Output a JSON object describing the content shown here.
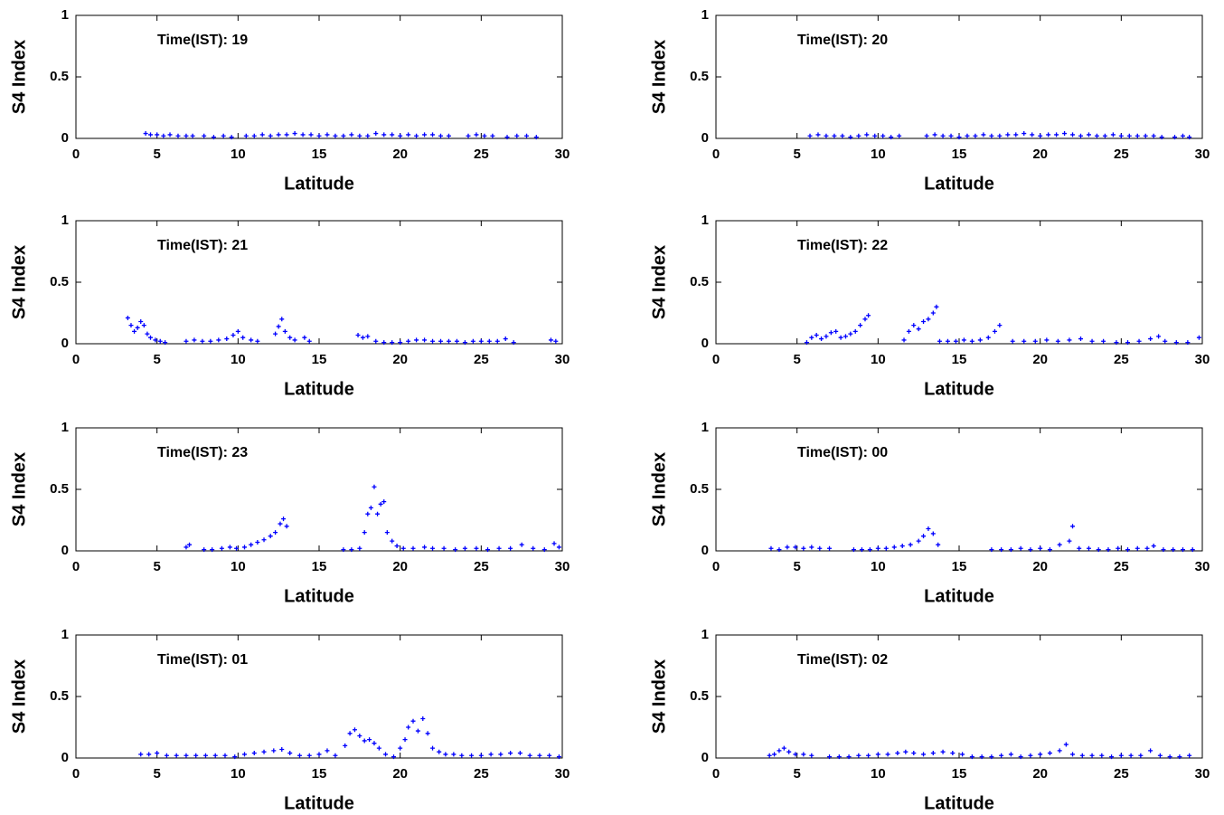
{
  "chart_data": [
    {
      "type": "scatter",
      "annotation": "Time(IST): 19",
      "xlabel": "Latitude",
      "ylabel": "S4 Index",
      "color": "#0000ff",
      "xlim": [
        0,
        30
      ],
      "ylim": [
        0,
        1
      ],
      "xticks": [
        0,
        5,
        10,
        15,
        20,
        25,
        30
      ],
      "yticks": [
        0,
        0.5,
        1
      ],
      "x": [
        4.3,
        4.6,
        5.0,
        5.4,
        5.8,
        6.3,
        6.8,
        7.2,
        7.9,
        8.5,
        9.1,
        9.6,
        10.5,
        11.0,
        11.5,
        12.0,
        12.5,
        13.0,
        13.5,
        14.0,
        14.5,
        15.0,
        15.5,
        16.0,
        16.5,
        17.0,
        17.5,
        18.0,
        18.5,
        19.0,
        19.5,
        20.0,
        20.5,
        21.0,
        21.5,
        22.0,
        22.5,
        23.0,
        24.2,
        24.7,
        25.2,
        25.7,
        26.6,
        27.2,
        27.8,
        28.4
      ],
      "values": [
        0.04,
        0.03,
        0.03,
        0.02,
        0.03,
        0.02,
        0.02,
        0.02,
        0.02,
        0.01,
        0.02,
        0.01,
        0.02,
        0.02,
        0.03,
        0.02,
        0.03,
        0.03,
        0.04,
        0.03,
        0.03,
        0.02,
        0.03,
        0.02,
        0.02,
        0.03,
        0.02,
        0.02,
        0.04,
        0.03,
        0.03,
        0.02,
        0.03,
        0.02,
        0.03,
        0.03,
        0.02,
        0.02,
        0.02,
        0.03,
        0.02,
        0.02,
        0.01,
        0.02,
        0.02,
        0.01
      ]
    },
    {
      "type": "scatter",
      "annotation": "Time(IST): 20",
      "xlabel": "Latitude",
      "ylabel": "S4 Index",
      "color": "#0000ff",
      "xlim": [
        0,
        30
      ],
      "ylim": [
        0,
        1
      ],
      "xticks": [
        0,
        5,
        10,
        15,
        20,
        25,
        30
      ],
      "yticks": [
        0,
        0.5,
        1
      ],
      "x": [
        5.8,
        6.3,
        6.8,
        7.3,
        7.8,
        8.3,
        8.8,
        9.3,
        9.8,
        10.3,
        10.8,
        11.3,
        13.0,
        13.5,
        14.0,
        14.5,
        15.0,
        15.5,
        16.0,
        16.5,
        17.0,
        17.5,
        18.0,
        18.5,
        19.0,
        19.5,
        20.0,
        20.5,
        21.0,
        21.5,
        22.0,
        22.5,
        23.0,
        23.5,
        24.0,
        24.5,
        25.0,
        25.5,
        26.0,
        26.5,
        27.0,
        27.5,
        28.3,
        28.8,
        29.2
      ],
      "values": [
        0.02,
        0.03,
        0.02,
        0.02,
        0.02,
        0.01,
        0.02,
        0.03,
        0.02,
        0.02,
        0.01,
        0.02,
        0.02,
        0.03,
        0.02,
        0.02,
        0.01,
        0.02,
        0.02,
        0.03,
        0.02,
        0.02,
        0.03,
        0.03,
        0.04,
        0.03,
        0.02,
        0.03,
        0.03,
        0.04,
        0.03,
        0.02,
        0.03,
        0.02,
        0.02,
        0.03,
        0.02,
        0.02,
        0.02,
        0.02,
        0.02,
        0.01,
        0.01,
        0.02,
        0.01
      ]
    },
    {
      "type": "scatter",
      "annotation": "Time(IST): 21",
      "xlabel": "Latitude",
      "ylabel": "S4 Index",
      "color": "#0000ff",
      "xlim": [
        0,
        30
      ],
      "ylim": [
        0,
        1
      ],
      "xticks": [
        0,
        5,
        10,
        15,
        20,
        25,
        30
      ],
      "yticks": [
        0,
        0.5,
        1
      ],
      "x": [
        3.2,
        3.4,
        3.6,
        3.8,
        4.0,
        4.2,
        4.4,
        4.6,
        4.9,
        5.2,
        5.5,
        6.8,
        7.3,
        7.8,
        8.3,
        8.8,
        9.3,
        9.7,
        10.0,
        10.3,
        10.8,
        11.2,
        12.3,
        12.5,
        12.7,
        12.9,
        13.2,
        13.5,
        14.1,
        14.4,
        17.4,
        17.7,
        18.0,
        18.5,
        19.0,
        19.5,
        20.0,
        20.5,
        21.0,
        21.5,
        22.0,
        22.5,
        23.0,
        23.5,
        24.0,
        24.5,
        25.0,
        25.5,
        26.0,
        26.5,
        27.0,
        29.3,
        29.6
      ],
      "values": [
        0.21,
        0.15,
        0.1,
        0.13,
        0.18,
        0.15,
        0.08,
        0.05,
        0.03,
        0.02,
        0.01,
        0.02,
        0.03,
        0.02,
        0.02,
        0.03,
        0.04,
        0.07,
        0.1,
        0.05,
        0.03,
        0.02,
        0.08,
        0.14,
        0.2,
        0.1,
        0.05,
        0.03,
        0.05,
        0.02,
        0.07,
        0.05,
        0.06,
        0.02,
        0.01,
        0.01,
        0.01,
        0.02,
        0.03,
        0.03,
        0.02,
        0.02,
        0.02,
        0.02,
        0.01,
        0.02,
        0.02,
        0.02,
        0.02,
        0.04,
        0.01,
        0.03,
        0.02
      ]
    },
    {
      "type": "scatter",
      "annotation": "Time(IST): 22",
      "xlabel": "Latitude",
      "ylabel": "S4 Index",
      "color": "#0000ff",
      "xlim": [
        0,
        30
      ],
      "ylim": [
        0,
        1
      ],
      "xticks": [
        0,
        5,
        10,
        15,
        20,
        25,
        30
      ],
      "yticks": [
        0,
        0.5,
        1
      ],
      "x": [
        5.6,
        5.9,
        6.2,
        6.5,
        6.8,
        7.1,
        7.4,
        7.7,
        8.0,
        8.3,
        8.6,
        8.9,
        9.2,
        9.4,
        11.6,
        11.9,
        12.2,
        12.5,
        12.8,
        13.1,
        13.4,
        13.6,
        13.8,
        14.3,
        14.8,
        15.3,
        15.8,
        16.3,
        16.8,
        17.2,
        17.5,
        18.3,
        19.0,
        19.7,
        20.4,
        21.1,
        21.8,
        22.5,
        23.2,
        23.9,
        24.7,
        25.4,
        26.1,
        26.8,
        27.3,
        27.7,
        28.4,
        29.1,
        29.8
      ],
      "values": [
        0.01,
        0.05,
        0.07,
        0.04,
        0.06,
        0.09,
        0.1,
        0.05,
        0.06,
        0.08,
        0.1,
        0.15,
        0.2,
        0.23,
        0.03,
        0.1,
        0.15,
        0.12,
        0.18,
        0.2,
        0.25,
        0.3,
        0.02,
        0.02,
        0.02,
        0.03,
        0.02,
        0.03,
        0.05,
        0.1,
        0.15,
        0.02,
        0.02,
        0.02,
        0.03,
        0.02,
        0.03,
        0.04,
        0.02,
        0.02,
        0.01,
        0.01,
        0.02,
        0.04,
        0.06,
        0.02,
        0.01,
        0.01,
        0.05
      ]
    },
    {
      "type": "scatter",
      "annotation": "Time(IST): 23",
      "xlabel": "Latitude",
      "ylabel": "S4 Index",
      "color": "#0000ff",
      "xlim": [
        0,
        30
      ],
      "ylim": [
        0,
        1
      ],
      "xticks": [
        0,
        5,
        10,
        15,
        20,
        25,
        30
      ],
      "yticks": [
        0,
        0.5,
        1
      ],
      "x": [
        6.8,
        7.0,
        7.9,
        8.4,
        9.0,
        9.5,
        9.9,
        10.4,
        10.8,
        11.2,
        11.6,
        12.0,
        12.3,
        12.6,
        12.8,
        13.0,
        16.5,
        17.0,
        17.5,
        17.8,
        18.0,
        18.2,
        18.4,
        18.6,
        18.8,
        19.0,
        19.2,
        19.5,
        19.8,
        20.2,
        20.8,
        21.5,
        22.0,
        22.7,
        23.4,
        24.0,
        24.7,
        25.4,
        26.1,
        26.8,
        27.5,
        28.2,
        28.9,
        29.5,
        29.8
      ],
      "values": [
        0.03,
        0.05,
        0.01,
        0.01,
        0.02,
        0.03,
        0.02,
        0.03,
        0.05,
        0.07,
        0.09,
        0.12,
        0.15,
        0.22,
        0.26,
        0.2,
        0.01,
        0.01,
        0.02,
        0.15,
        0.3,
        0.35,
        0.52,
        0.3,
        0.38,
        0.4,
        0.15,
        0.08,
        0.04,
        0.02,
        0.02,
        0.03,
        0.02,
        0.02,
        0.01,
        0.02,
        0.02,
        0.01,
        0.02,
        0.02,
        0.05,
        0.02,
        0.01,
        0.06,
        0.03
      ]
    },
    {
      "type": "scatter",
      "annotation": "Time(IST): 00",
      "xlabel": "Latitude",
      "ylabel": "S4 Index",
      "color": "#0000ff",
      "xlim": [
        0,
        30
      ],
      "ylim": [
        0,
        1
      ],
      "xticks": [
        0,
        5,
        10,
        15,
        20,
        25,
        30
      ],
      "yticks": [
        0,
        0.5,
        1
      ],
      "x": [
        3.4,
        3.9,
        4.4,
        4.9,
        5.4,
        5.9,
        6.4,
        7.0,
        8.5,
        9.0,
        9.5,
        10.0,
        10.5,
        11.0,
        11.5,
        12.0,
        12.5,
        12.8,
        13.1,
        13.4,
        13.7,
        17.0,
        17.6,
        18.2,
        18.8,
        19.4,
        20.0,
        20.6,
        21.2,
        21.8,
        22.0,
        22.4,
        23.0,
        23.6,
        24.2,
        24.8,
        25.4,
        26.0,
        26.6,
        27.0,
        27.6,
        28.2,
        28.8,
        29.4
      ],
      "values": [
        0.02,
        0.01,
        0.03,
        0.03,
        0.02,
        0.03,
        0.02,
        0.02,
        0.01,
        0.01,
        0.01,
        0.02,
        0.02,
        0.03,
        0.04,
        0.05,
        0.08,
        0.12,
        0.18,
        0.14,
        0.05,
        0.01,
        0.01,
        0.01,
        0.02,
        0.01,
        0.02,
        0.01,
        0.05,
        0.08,
        0.2,
        0.02,
        0.02,
        0.01,
        0.01,
        0.02,
        0.01,
        0.02,
        0.02,
        0.04,
        0.01,
        0.01,
        0.01,
        0.01
      ]
    },
    {
      "type": "scatter",
      "annotation": "Time(IST): 01",
      "xlabel": "Latitude",
      "ylabel": "S4 Index",
      "color": "#0000ff",
      "xlim": [
        0,
        30
      ],
      "ylim": [
        0,
        1
      ],
      "xticks": [
        0,
        5,
        10,
        15,
        20,
        25,
        30
      ],
      "yticks": [
        0,
        0.5,
        1
      ],
      "x": [
        4.0,
        4.5,
        5.0,
        5.6,
        6.2,
        6.8,
        7.4,
        8.0,
        8.6,
        9.2,
        9.8,
        10.4,
        11.0,
        11.6,
        12.2,
        12.7,
        13.2,
        13.8,
        14.4,
        15.0,
        15.5,
        16.0,
        16.6,
        16.9,
        17.2,
        17.5,
        17.8,
        18.1,
        18.4,
        18.7,
        19.1,
        19.6,
        20.0,
        20.3,
        20.5,
        20.8,
        21.1,
        21.4,
        21.7,
        22.0,
        22.4,
        22.8,
        23.3,
        23.8,
        24.4,
        25.0,
        25.6,
        26.2,
        26.8,
        27.4,
        28.0,
        28.6,
        29.2,
        29.8
      ],
      "values": [
        0.03,
        0.03,
        0.04,
        0.02,
        0.02,
        0.02,
        0.02,
        0.02,
        0.02,
        0.02,
        0.01,
        0.03,
        0.04,
        0.05,
        0.06,
        0.07,
        0.04,
        0.02,
        0.02,
        0.03,
        0.06,
        0.02,
        0.1,
        0.2,
        0.23,
        0.18,
        0.14,
        0.15,
        0.12,
        0.08,
        0.03,
        0.01,
        0.08,
        0.15,
        0.25,
        0.3,
        0.22,
        0.32,
        0.2,
        0.08,
        0.05,
        0.03,
        0.03,
        0.02,
        0.02,
        0.02,
        0.03,
        0.03,
        0.04,
        0.04,
        0.02,
        0.02,
        0.02,
        0.01
      ]
    },
    {
      "type": "scatter",
      "annotation": "Time(IST): 02",
      "xlabel": "Latitude",
      "ylabel": "S4 Index",
      "color": "#0000ff",
      "xlim": [
        0,
        30
      ],
      "ylim": [
        0,
        1
      ],
      "xticks": [
        0,
        5,
        10,
        15,
        20,
        25,
        30
      ],
      "yticks": [
        0,
        0.5,
        1
      ],
      "x": [
        3.3,
        3.6,
        3.9,
        4.2,
        4.5,
        4.9,
        5.4,
        5.9,
        7.0,
        7.6,
        8.2,
        8.8,
        9.4,
        10.0,
        10.6,
        11.2,
        11.7,
        12.2,
        12.8,
        13.4,
        14.0,
        14.6,
        15.2,
        15.8,
        16.4,
        17.0,
        17.6,
        18.2,
        18.8,
        19.4,
        20.0,
        20.6,
        21.2,
        21.6,
        22.0,
        22.6,
        23.2,
        23.8,
        24.4,
        25.0,
        25.6,
        26.2,
        26.8,
        27.4,
        28.0,
        28.6,
        29.2
      ],
      "values": [
        0.02,
        0.03,
        0.06,
        0.08,
        0.05,
        0.03,
        0.03,
        0.02,
        0.01,
        0.01,
        0.01,
        0.02,
        0.02,
        0.03,
        0.03,
        0.04,
        0.05,
        0.04,
        0.03,
        0.04,
        0.05,
        0.04,
        0.03,
        0.01,
        0.01,
        0.01,
        0.02,
        0.03,
        0.01,
        0.02,
        0.03,
        0.04,
        0.06,
        0.11,
        0.03,
        0.02,
        0.02,
        0.02,
        0.01,
        0.02,
        0.02,
        0.02,
        0.06,
        0.02,
        0.01,
        0.01,
        0.02
      ]
    }
  ]
}
